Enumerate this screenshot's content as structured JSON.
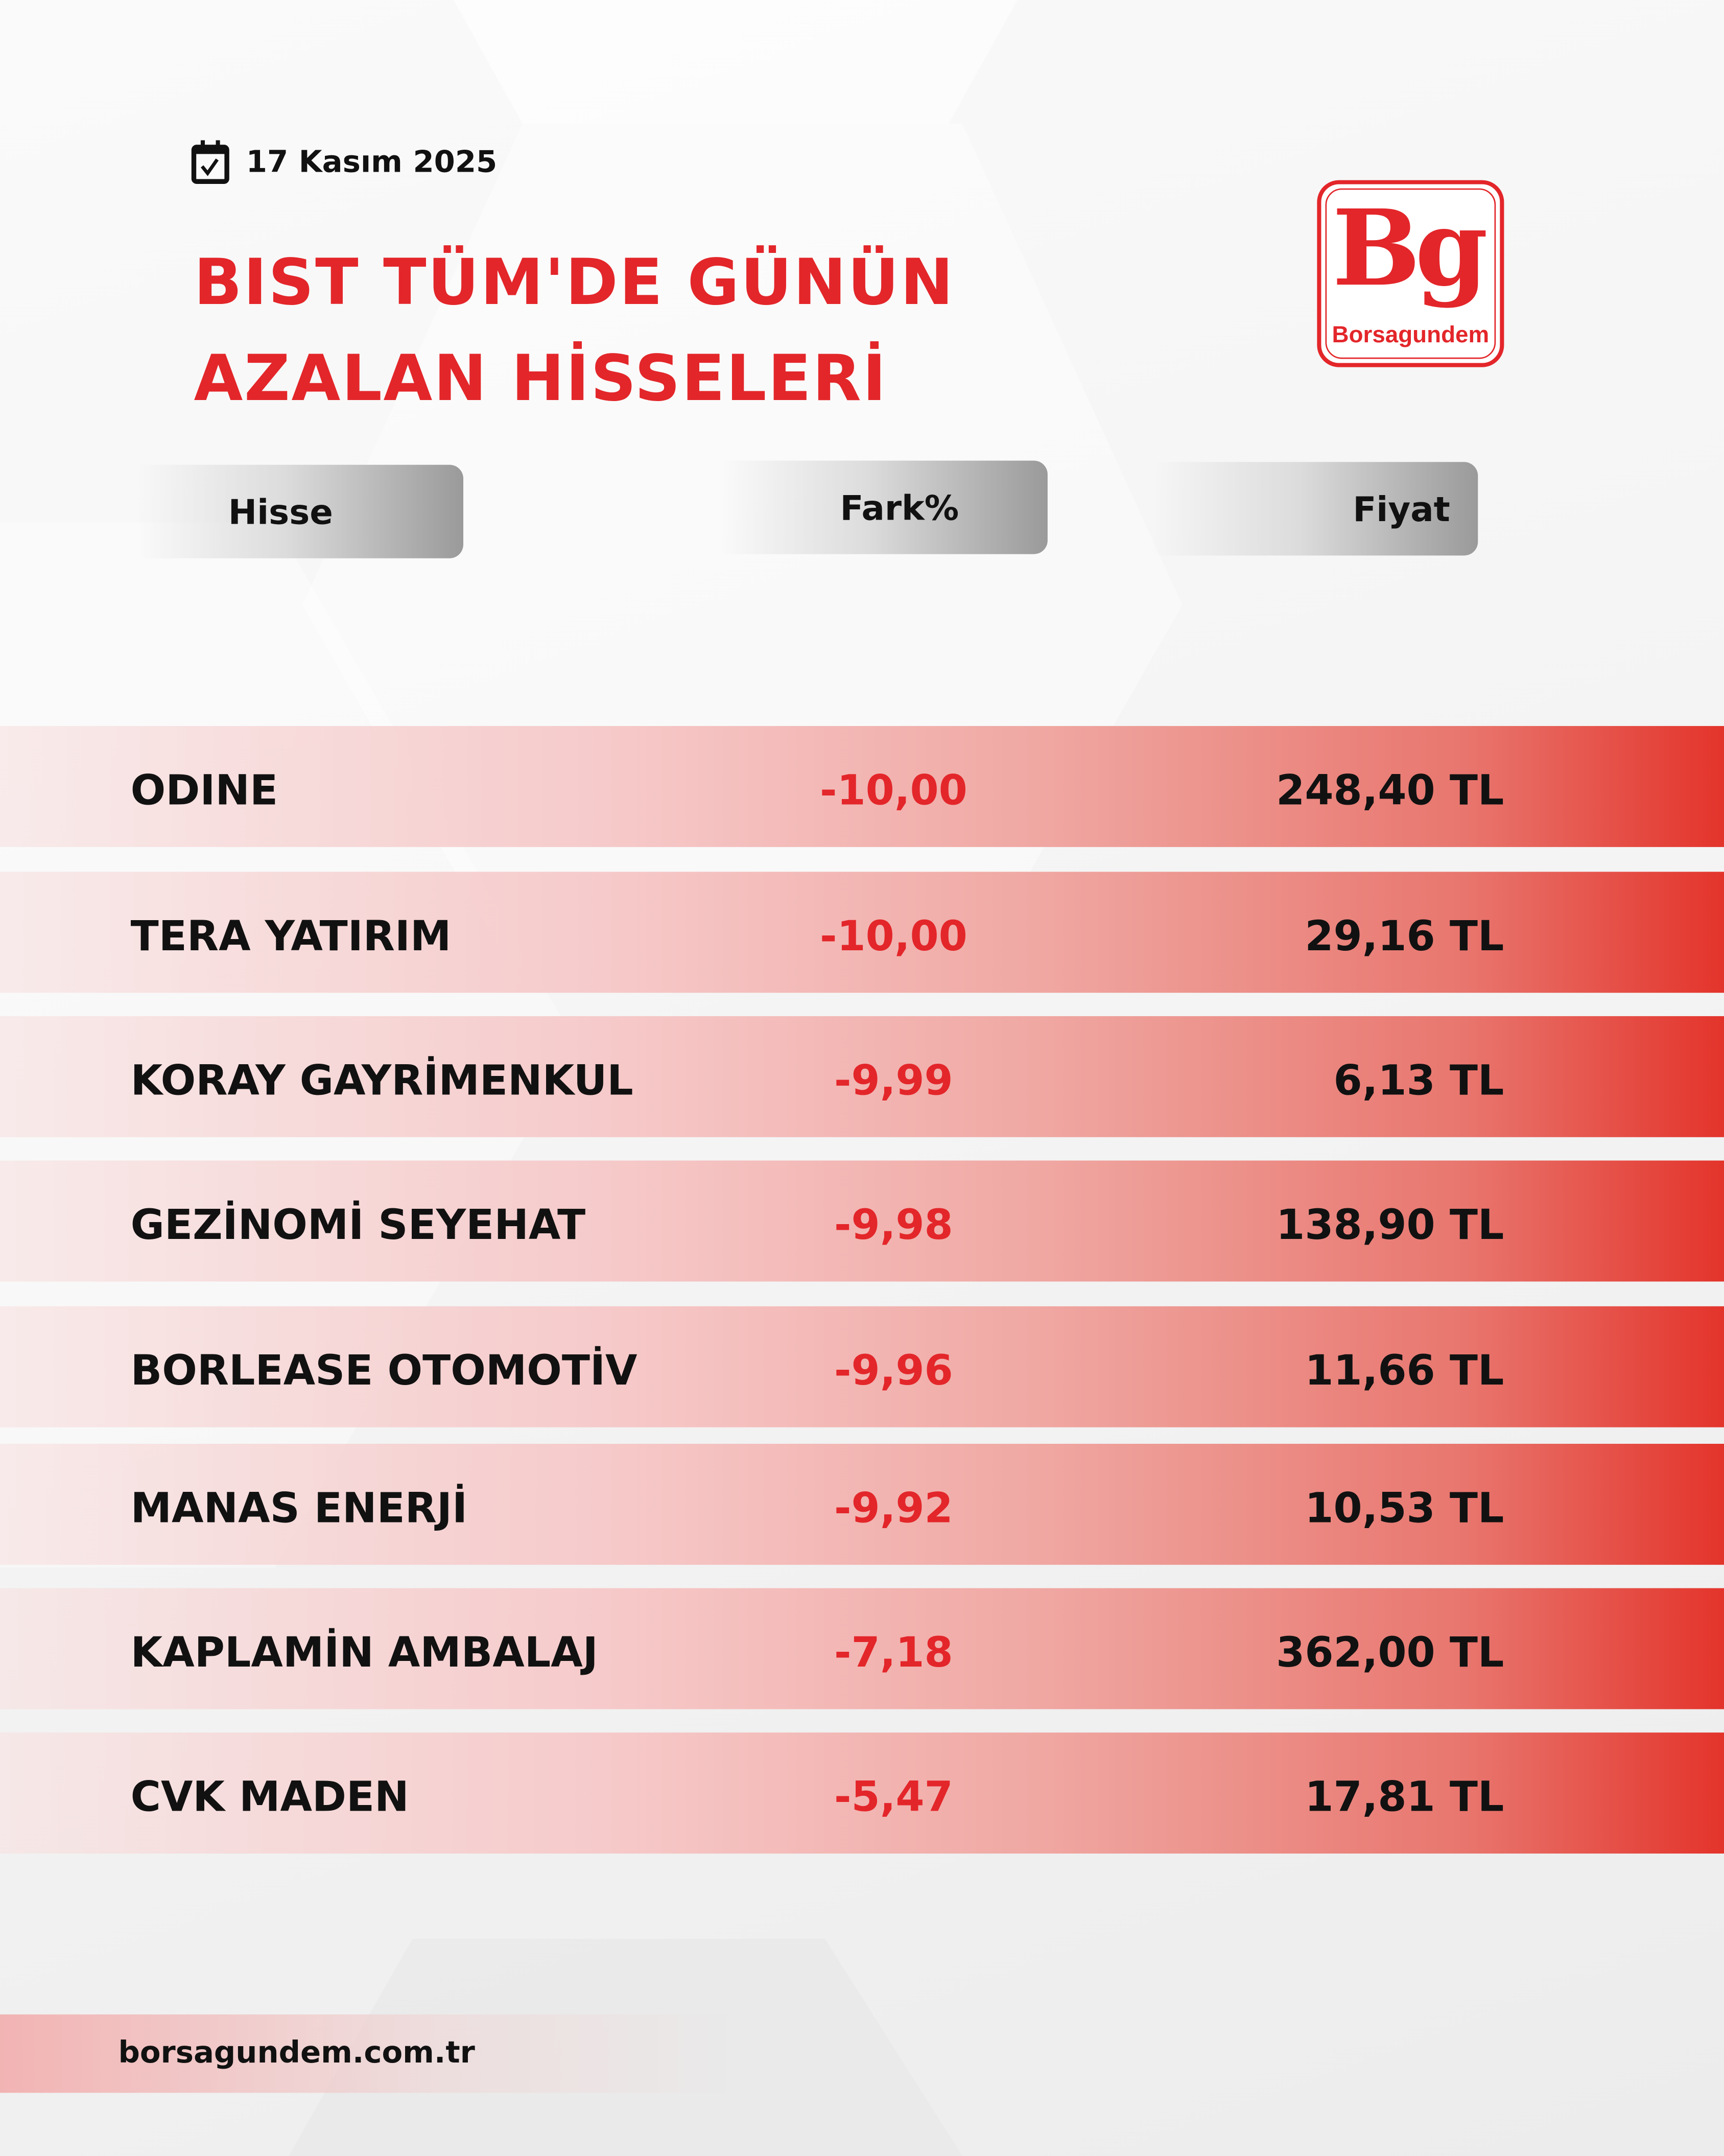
{
  "date": "17 Kasım 2025",
  "title_lines": [
    "BIST TÜM'DE GÜNÜN",
    "AZALAN HİSSELERİ"
  ],
  "logo": {
    "mark": "Bg",
    "wordmark": "Borsagundem"
  },
  "columns": {
    "stock": "Hisse",
    "change": "Fark%",
    "price": "Fiyat"
  },
  "rows": [
    {
      "name": "ODINE",
      "change": "-10,00",
      "price": "248,40 TL"
    },
    {
      "name": "TERA YATIRIM",
      "change": "-10,00",
      "price": "29,16 TL"
    },
    {
      "name": "KORAY GAYRİMENKUL",
      "change": "-9,99",
      "price": "6,13 TL"
    },
    {
      "name": "GEZİNOMİ SEYEHAT",
      "change": "-9,98",
      "price": "138,90 TL"
    },
    {
      "name": "BORLEASE OTOMOTİV",
      "change": "-9,96",
      "price": "11,66 TL"
    },
    {
      "name": "MANAS ENERJİ",
      "change": "-9,92",
      "price": "10,53 TL"
    },
    {
      "name": "KAPLAMİN AMBALAJ",
      "change": "-7,18",
      "price": "362,00 TL"
    },
    {
      "name": "CVK MADEN",
      "change": "-5,47",
      "price": "17,81 TL"
    }
  ],
  "footer": "borsagundem.com.tr",
  "colors": {
    "accent": "#e3262a",
    "text": "#111111"
  }
}
